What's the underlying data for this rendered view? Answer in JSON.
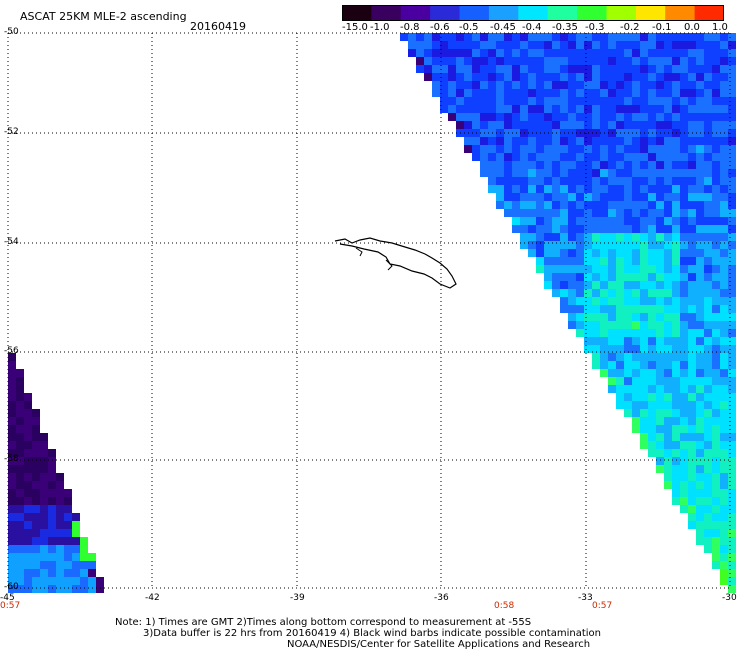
{
  "header": {
    "title": "ASCAT 25KM MLE-2 ascending",
    "date": "20160419"
  },
  "colorbar": {
    "labels": [
      "-15.0",
      "-1.0",
      "-0.8",
      "-0.6",
      "-0.5",
      "-0.45",
      "-0.4",
      "-0.35",
      "-0.3",
      "-0.2",
      "-0.1",
      "0.0",
      "1.0"
    ],
    "colors": [
      "#1a0010",
      "#3a0060",
      "#4a00a0",
      "#2a2ad8",
      "#1560ff",
      "#1aa0ff",
      "#00e6ff",
      "#20ffa0",
      "#30ff30",
      "#a0ff00",
      "#ffe600",
      "#ff8a00",
      "#ff2a00"
    ]
  },
  "map": {
    "lat_labels": [
      "-50",
      "-52",
      "-54",
      "-56",
      "-58",
      "-60"
    ],
    "lon_labels": [
      "-45",
      "-42",
      "-39",
      "-36",
      "-33",
      "-30"
    ],
    "time_labels": [
      "0:57",
      "0:58",
      "0:57"
    ],
    "lat_range": [
      -60,
      -50
    ],
    "lon_range": [
      -45,
      -30
    ]
  },
  "notes": {
    "line1": "Note: 1) Times are GMT 2)Times along bottom correspond to measurement at -55S",
    "line2": "3)Data buffer is 22 hrs from 20160419 4) Black wind barbs indicate possible contamination",
    "line3": "NOAA/NESDIS/Center for Satellite Applications and Research"
  }
}
